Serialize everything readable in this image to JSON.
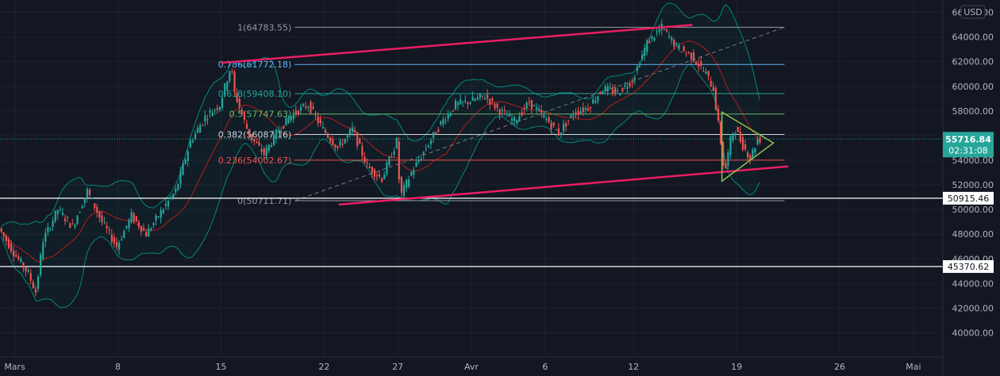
{
  "currency": "USD",
  "chart_data": {
    "type": "candlestick",
    "title": "",
    "currency": "USD",
    "ylim": [
      39000,
      67000
    ],
    "y_ticks": [
      40000,
      42000,
      44000,
      46000,
      48000,
      50000,
      52000,
      54000,
      56000,
      58000,
      60000,
      62000,
      64000,
      66000
    ],
    "y_tick_labels": [
      "40000.00",
      "42000.00",
      "44000.00",
      "46000.00",
      "48000.00",
      "50000.00",
      "52000.00",
      "54000.00",
      "56000.00",
      "58000.00",
      "60000.00",
      "62000.00",
      "64000.00",
      "66000.00"
    ],
    "x_start": "2021-02-28",
    "x_end": "2021-05-03",
    "x_ticks": [
      {
        "date": "2021-03-01",
        "label": "Mars"
      },
      {
        "date": "2021-03-08",
        "label": "8"
      },
      {
        "date": "2021-03-15",
        "label": "15"
      },
      {
        "date": "2021-03-22",
        "label": "22"
      },
      {
        "date": "2021-03-27",
        "label": "27"
      },
      {
        "date": "2021-04-01",
        "label": "Avr"
      },
      {
        "date": "2021-04-06",
        "label": "6"
      },
      {
        "date": "2021-04-12",
        "label": "12"
      },
      {
        "date": "2021-04-19",
        "label": "19"
      },
      {
        "date": "2021-04-26",
        "label": "26"
      },
      {
        "date": "2021-05-01",
        "label": "Mai"
      }
    ],
    "price_path": [
      [
        "2021-02-28",
        48500
      ],
      [
        "2021-03-01",
        46500
      ],
      [
        "2021-03-02",
        44800
      ],
      [
        "2021-03-02T12",
        43300
      ],
      [
        "2021-03-03",
        47500
      ],
      [
        "2021-03-04",
        50000
      ],
      [
        "2021-03-05",
        48600
      ],
      [
        "2021-03-06",
        51500
      ],
      [
        "2021-03-07",
        49000
      ],
      [
        "2021-03-08",
        47000
      ],
      [
        "2021-03-09",
        49500
      ],
      [
        "2021-03-10",
        48000
      ],
      [
        "2021-03-11",
        49800
      ],
      [
        "2021-03-12",
        51500
      ],
      [
        "2021-03-13",
        55500
      ],
      [
        "2021-03-14",
        57500
      ],
      [
        "2021-03-15",
        58500
      ],
      [
        "2021-03-15T18",
        61700
      ],
      [
        "2021-03-16",
        59500
      ],
      [
        "2021-03-17",
        56000
      ],
      [
        "2021-03-18",
        54500
      ],
      [
        "2021-03-19",
        56500
      ],
      [
        "2021-03-20",
        57800
      ],
      [
        "2021-03-21",
        58500
      ],
      [
        "2021-03-22",
        56500
      ],
      [
        "2021-03-23",
        55000
      ],
      [
        "2021-03-24",
        56500
      ],
      [
        "2021-03-25",
        53500
      ],
      [
        "2021-03-26",
        52500
      ],
      [
        "2021-03-27",
        55500
      ],
      [
        "2021-03-27T06",
        51000
      ],
      [
        "2021-03-28",
        53000
      ],
      [
        "2021-03-29",
        55000
      ],
      [
        "2021-03-30",
        57000
      ],
      [
        "2021-03-31",
        58500
      ],
      [
        "2021-04-01",
        58800
      ],
      [
        "2021-04-02",
        59200
      ],
      [
        "2021-04-03",
        58000
      ],
      [
        "2021-04-04",
        57200
      ],
      [
        "2021-04-05",
        58700
      ],
      [
        "2021-04-06",
        57500
      ],
      [
        "2021-04-07",
        56200
      ],
      [
        "2021-04-08",
        57800
      ],
      [
        "2021-04-09",
        58300
      ],
      [
        "2021-04-10",
        59800
      ],
      [
        "2021-04-11",
        59500
      ],
      [
        "2021-04-12",
        60500
      ],
      [
        "2021-04-13",
        63500
      ],
      [
        "2021-04-14",
        64780
      ],
      [
        "2021-04-15",
        63200
      ],
      [
        "2021-04-16",
        62500
      ],
      [
        "2021-04-17",
        61000
      ],
      [
        "2021-04-17T12",
        59800
      ],
      [
        "2021-04-18",
        55500
      ],
      [
        "2021-04-18T06",
        52800
      ],
      [
        "2021-04-18T18",
        56200
      ],
      [
        "2021-04-19",
        56500
      ],
      [
        "2021-04-19T12",
        55200
      ],
      [
        "2021-04-20",
        54200
      ],
      [
        "2021-04-20T12",
        55700
      ]
    ],
    "fib_levels": [
      {
        "ratio": 1,
        "price": 64783.55,
        "label": "1(64783.55)",
        "color": "#9598a1"
      },
      {
        "ratio": 0.786,
        "price": 61772.18,
        "label": "0.786(61772.18)",
        "color": "#64b5f6"
      },
      {
        "ratio": 0.618,
        "price": 59408.1,
        "label": "0.618(59408.10)",
        "color": "#26a69a"
      },
      {
        "ratio": 0.5,
        "price": 57747.63,
        "label": "0.5(57747.63)",
        "color": "#66bb6a"
      },
      {
        "ratio": 0.382,
        "price": 56087.16,
        "label": "0.382(56087.16)",
        "color": "#d1d4dc"
      },
      {
        "ratio": 0.236,
        "price": 54002.67,
        "label": "0.236(54002.67)",
        "color": "#ef5350"
      },
      {
        "ratio": 0,
        "price": 50711.71,
        "label": "0(50711.71)",
        "color": "#9598a1"
      }
    ],
    "fib_start": "2021-03-20",
    "fib_end": "2021-04-22T06",
    "horizontal_levels": [
      {
        "price": 50915.46,
        "label": "50915.46"
      },
      {
        "price": 45370.62,
        "label": "45370.62"
      }
    ],
    "channel": {
      "upper": [
        [
          "2021-03-15",
          61900
        ],
        [
          "2021-04-16",
          64980
        ]
      ],
      "lower": [
        [
          "2021-03-23",
          50400
        ],
        [
          "2021-04-22T12",
          53500
        ]
      ],
      "color": "#e91e63"
    },
    "trend_dashed": [
      [
        "2021-03-20",
        50711.71
      ],
      [
        "2021-04-22T06",
        64783.55
      ]
    ],
    "triangle": [
      [
        "2021-04-18",
        57900
      ],
      [
        "2021-04-21T12",
        55400
      ],
      [
        "2021-04-18",
        52300
      ]
    ],
    "triangle_color": "#8bc34a",
    "current_price": "55716.84",
    "countdown": "02:31:08",
    "current_price_value": 55716.84,
    "colors": {
      "up": "#26a69a",
      "down": "#ef5350",
      "band": "#00897b",
      "ma": "#b71c1c",
      "price_box": "#26a69a",
      "background": "#131722"
    }
  }
}
